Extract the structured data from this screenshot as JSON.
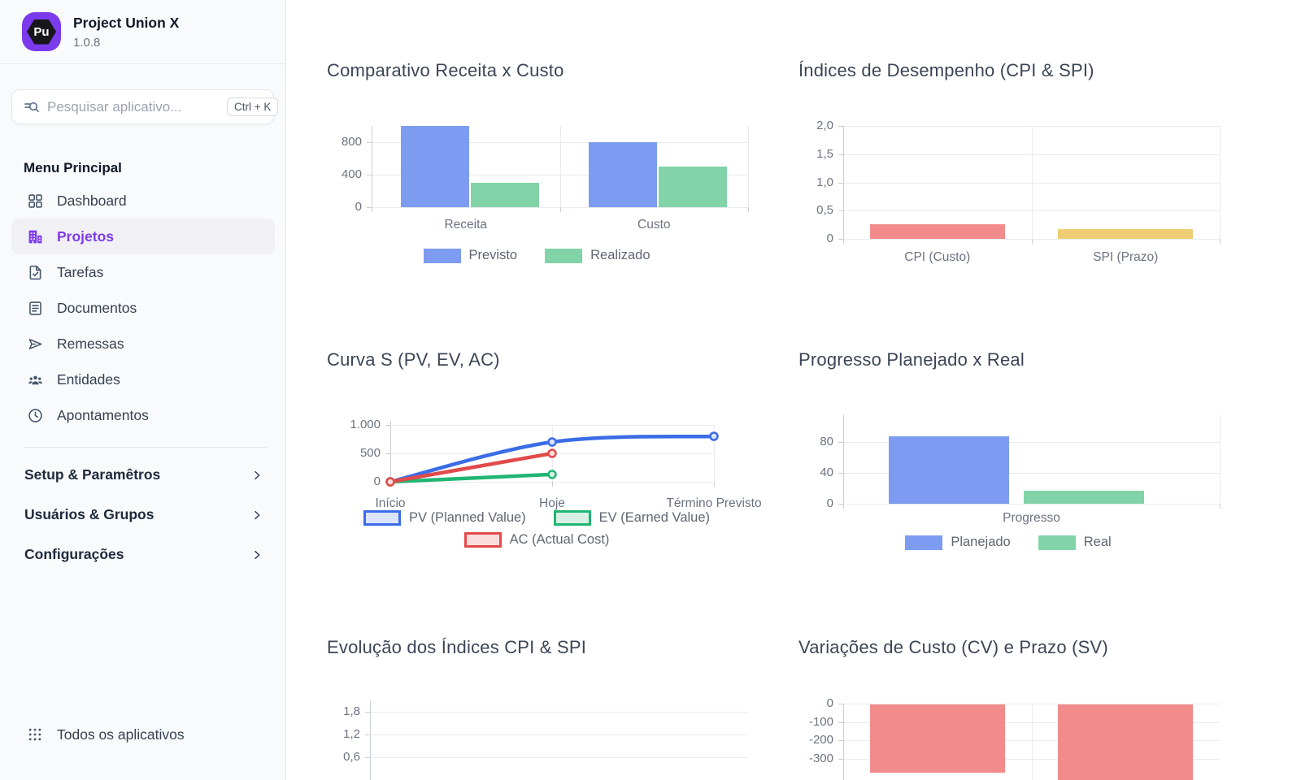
{
  "sidebar": {
    "app": {
      "name": "Project Union X",
      "version": "1.0.8",
      "logo_text": "Pu"
    },
    "search": {
      "placeholder": "Pesquisar aplicativo...",
      "shortcut": "Ctrl + K"
    },
    "menu_label": "Menu Principal",
    "items": [
      {
        "label": "Dashboard",
        "icon": "dashboard-icon",
        "active": false
      },
      {
        "label": "Projetos",
        "icon": "building-icon",
        "active": true
      },
      {
        "label": "Tarefas",
        "icon": "task-check-icon",
        "active": false
      },
      {
        "label": "Documentos",
        "icon": "document-icon",
        "active": false
      },
      {
        "label": "Remessas",
        "icon": "send-icon",
        "active": false
      },
      {
        "label": "Entidades",
        "icon": "people-icon",
        "active": false
      },
      {
        "label": "Apontamentos",
        "icon": "clock-icon",
        "active": false
      }
    ],
    "sections": [
      {
        "label": "Setup & Paramêtros"
      },
      {
        "label": "Usuários & Grupos"
      },
      {
        "label": "Configurações"
      }
    ],
    "footer": {
      "label": "Todos os aplicativos"
    }
  },
  "colors": {
    "accent": "#7c3aed",
    "bar_blue": "#7d9bf0",
    "bar_green": "#82d4a8",
    "bar_red": "#f28b8b",
    "bar_yellow": "#eecd73",
    "line_blue": "#3b6ce8",
    "line_green": "#21b573",
    "line_red": "#e24a4a"
  },
  "chart_data": [
    {
      "type": "bar",
      "title": "Comparativo Receita x Custo",
      "categories": [
        "Receita",
        "Custo"
      ],
      "series": [
        {
          "name": "Previsto",
          "color": "#7d9bf0",
          "values": [
            1000,
            800
          ]
        },
        {
          "name": "Realizado",
          "color": "#82d4a8",
          "values": [
            300,
            500
          ]
        }
      ],
      "ylim": [
        0,
        1000
      ],
      "yticks": [
        {
          "v": 0,
          "label": "0"
        },
        {
          "v": 400,
          "label": "400"
        },
        {
          "v": 800,
          "label": "800"
        }
      ],
      "legend": true,
      "legend_position": "bottom",
      "grid": true
    },
    {
      "type": "bar",
      "title": "Índices de Desempenho (CPI & SPI)",
      "categories": [
        "CPI (Custo)",
        "SPI (Prazo)"
      ],
      "series": [
        {
          "name": "Índice",
          "colors": [
            "#f28b8b",
            "#eecd73"
          ],
          "values": [
            0.26,
            0.18
          ]
        }
      ],
      "ylim": [
        0,
        2
      ],
      "yticks": [
        {
          "v": 0,
          "label": "0"
        },
        {
          "v": 0.5,
          "label": "0,5"
        },
        {
          "v": 1,
          "label": "1,0"
        },
        {
          "v": 1.5,
          "label": "1,5"
        },
        {
          "v": 2,
          "label": "2,0"
        }
      ],
      "legend": false,
      "grid": true
    },
    {
      "type": "line",
      "title": "Curva S (PV, EV, AC)",
      "x": [
        "Início",
        "Hoje",
        "Término Previsto"
      ],
      "series": [
        {
          "name": "PV (Planned Value)",
          "color": "#3b6ce8",
          "fill": "#dbe4fb",
          "values": [
            0,
            700,
            800
          ]
        },
        {
          "name": "EV (Earned Value)",
          "color": "#21b573",
          "fill": "#d8f1e4",
          "values": [
            0,
            130,
            null
          ]
        },
        {
          "name": "AC (Actual Cost)",
          "color": "#e24a4a",
          "fill": "#fadcdc",
          "values": [
            0,
            500,
            null
          ]
        }
      ],
      "ylim": [
        0,
        1000
      ],
      "yticks": [
        {
          "v": 0,
          "label": "0"
        },
        {
          "v": 500,
          "label": "500"
        },
        {
          "v": 1000,
          "label": "1.000"
        }
      ],
      "legend": true,
      "legend_position": "bottom",
      "legend_rows": [
        [
          0,
          1
        ],
        [
          2
        ]
      ],
      "grid": true
    },
    {
      "type": "bar",
      "title": "Progresso Planejado x Real",
      "categories": [
        "Progresso"
      ],
      "series": [
        {
          "name": "Planejado",
          "color": "#7d9bf0",
          "values": [
            87
          ]
        },
        {
          "name": "Real",
          "color": "#82d4a8",
          "values": [
            17
          ]
        }
      ],
      "ylim": [
        0,
        100
      ],
      "yticks": [
        {
          "v": 0,
          "label": "0"
        },
        {
          "v": 40,
          "label": "40"
        },
        {
          "v": 80,
          "label": "80"
        }
      ],
      "legend": true,
      "legend_position": "bottom",
      "grid": true
    },
    {
      "type": "line",
      "title": "Evolução dos Índices CPI & SPI",
      "x": [],
      "series": [],
      "ylim": [
        0,
        1.8
      ],
      "yticks": [
        {
          "v": 0.6,
          "label": "0,6"
        },
        {
          "v": 1.2,
          "label": "1,2"
        },
        {
          "v": 1.8,
          "label": "1,8"
        }
      ],
      "legend": false,
      "grid": true,
      "note": "partially visible, cut by viewport"
    },
    {
      "type": "bar",
      "title": "Variações de Custo (CV) e Prazo (SV)",
      "categories": [
        "",
        ""
      ],
      "series": [
        {
          "name": "",
          "colors": [
            "#f28b8b",
            "#f28b8b"
          ],
          "values": [
            -370,
            -570
          ]
        }
      ],
      "ylim": [
        -300,
        0
      ],
      "yticks": [
        {
          "v": 0,
          "label": "0"
        },
        {
          "v": -100,
          "label": "-100"
        },
        {
          "v": -200,
          "label": "-200"
        },
        {
          "v": -300,
          "label": "-300"
        }
      ],
      "legend": false,
      "grid": true,
      "note": "bars extend below viewport cutoff"
    }
  ]
}
